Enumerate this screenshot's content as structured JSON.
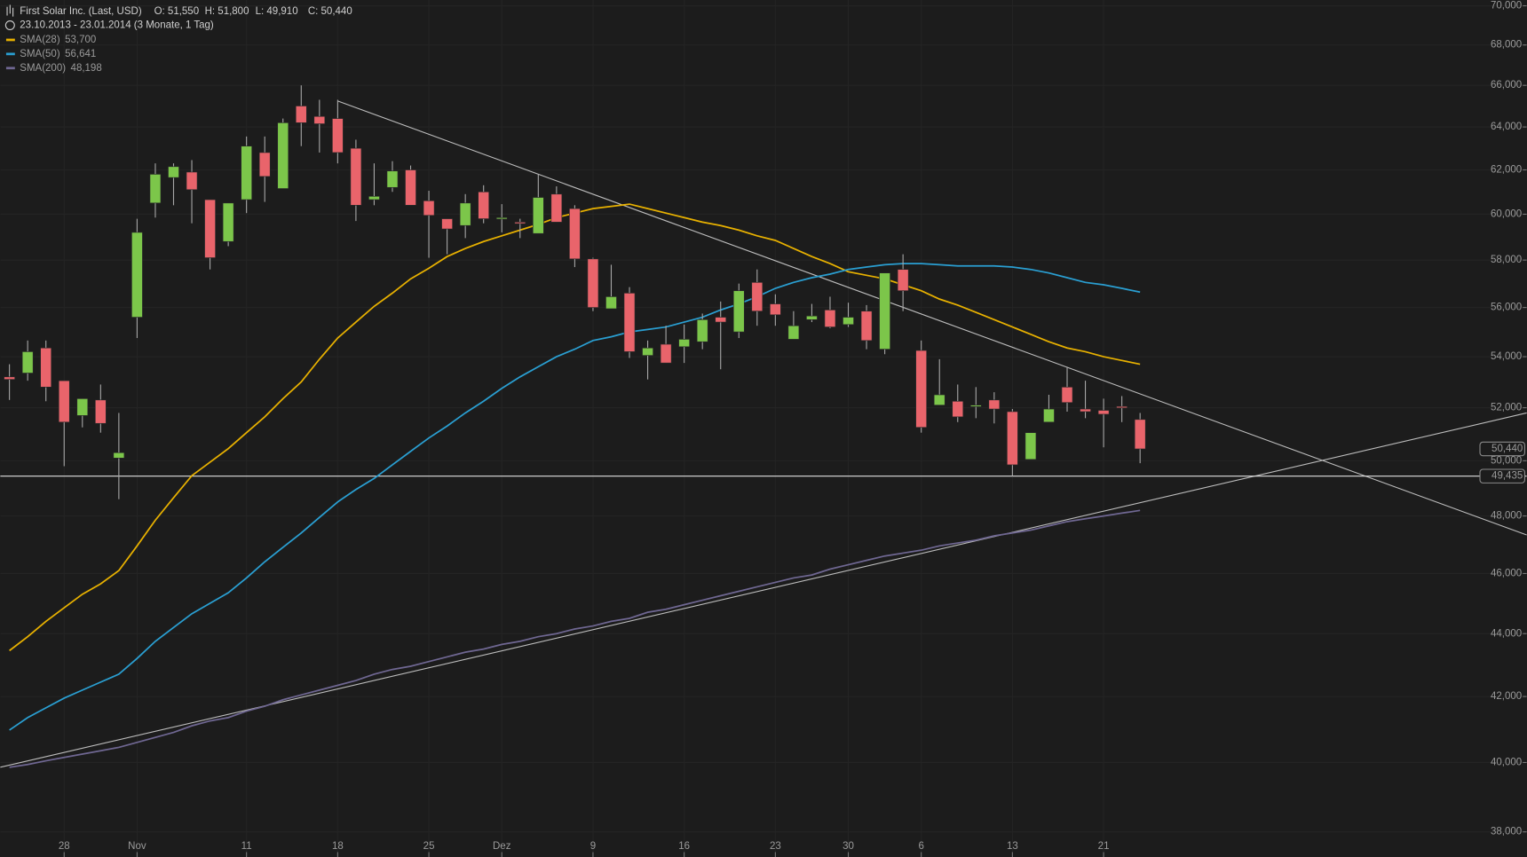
{
  "header": {
    "title": "First Solar Inc. (Last, USD)",
    "open": "O: 51,550",
    "high": "H: 51,800",
    "low": "L: 49,910",
    "close": "C: 50,440",
    "period": "23.10.2013 - 23.01.2014 (3 Monate, 1 Tag)"
  },
  "chart_data": {
    "type": "candlestick",
    "log_scale": true,
    "grid": true,
    "categories": [
      null,
      null,
      null,
      "28",
      null,
      null,
      null,
      "Nov",
      null,
      null,
      null,
      null,
      null,
      "11",
      null,
      null,
      null,
      null,
      "18",
      null,
      null,
      null,
      null,
      "25",
      null,
      null,
      null,
      "Dez",
      null,
      null,
      null,
      null,
      "9",
      null,
      null,
      null,
      null,
      "16",
      null,
      null,
      null,
      null,
      "23",
      null,
      null,
      null,
      "30",
      null,
      null,
      null,
      "6",
      null,
      null,
      null,
      null,
      "13",
      null,
      null,
      null,
      null,
      "21",
      null,
      null
    ],
    "ohlc": {
      "up_color": "#7cc64a",
      "down_color": "#e9646b",
      "wick_color": "#a8a8a8",
      "open": [
        53200,
        53350,
        54350,
        53050,
        51700,
        52300,
        50100,
        55600,
        60500,
        61650,
        61900,
        60650,
        58800,
        60650,
        62800,
        61150,
        65000,
        64500,
        64400,
        63000,
        60650,
        61200,
        62000,
        60600,
        59800,
        59500,
        61000,
        59800,
        59650,
        59150,
        60900,
        60250,
        58050,
        55950,
        56600,
        54050,
        54500,
        54400,
        54600,
        55600,
        55000,
        57050,
        56150,
        54700,
        55500,
        55900,
        55300,
        55850,
        54300,
        57600,
        54250,
        52100,
        52250,
        52050,
        52300,
        51850,
        50050,
        51450,
        52800,
        51950,
        51900,
        52050,
        51550
      ],
      "high": [
        53700,
        54650,
        54650,
        53050,
        52350,
        52900,
        51800,
        59800,
        62300,
        62300,
        62450,
        60650,
        60500,
        63550,
        63550,
        64400,
        66000,
        65300,
        65300,
        63400,
        62300,
        62400,
        62200,
        61050,
        59800,
        60900,
        61300,
        60450,
        59800,
        61800,
        61250,
        60400,
        58100,
        57800,
        56850,
        54650,
        55250,
        55300,
        55750,
        56250,
        57000,
        57600,
        56550,
        55850,
        56150,
        56450,
        56200,
        56100,
        57450,
        58250,
        54650,
        53900,
        52900,
        52800,
        52600,
        51950,
        51050,
        52500,
        53600,
        53050,
        52350,
        52450,
        51800
      ],
      "low": [
        52300,
        53050,
        52250,
        49800,
        51250,
        51050,
        48600,
        54750,
        59850,
        60400,
        59600,
        57600,
        58600,
        60050,
        60550,
        61150,
        63100,
        62800,
        62300,
        59700,
        60400,
        61000,
        60400,
        58100,
        58250,
        58950,
        59600,
        59200,
        58950,
        59150,
        59650,
        57700,
        55850,
        55950,
        53950,
        53100,
        53750,
        53750,
        54300,
        53500,
        54750,
        55250,
        55250,
        54700,
        55400,
        55150,
        55200,
        54300,
        54100,
        55850,
        51050,
        52100,
        51450,
        51600,
        51400,
        49435,
        50050,
        51450,
        51850,
        51600,
        50500,
        51450,
        49910
      ],
      "close": [
        53100,
        54200,
        52800,
        51450,
        52350,
        51400,
        50300,
        59200,
        61800,
        62150,
        61100,
        58100,
        60500,
        63100,
        61700,
        64200,
        64200,
        64150,
        62800,
        60400,
        60800,
        61950,
        60400,
        59950,
        59350,
        60500,
        59800,
        59850,
        59600,
        60750,
        59650,
        58050,
        56000,
        56450,
        54200,
        54350,
        53750,
        54700,
        55500,
        55400,
        56700,
        55850,
        55700,
        55250,
        55650,
        55200,
        55600,
        54650,
        57450,
        56700,
        51250,
        52500,
        51650,
        52100,
        51950,
        49850,
        51050,
        51950,
        52200,
        51850,
        51750,
        52000,
        50440
      ]
    },
    "series": [
      {
        "name": "SMA(28)",
        "color": "#e8b100",
        "last_label": "53,700",
        "values": [
          43450,
          43900,
          44400,
          44850,
          45300,
          45650,
          46100,
          46950,
          47850,
          48650,
          49450,
          49950,
          50450,
          51050,
          51650,
          52350,
          53000,
          53900,
          54750,
          55400,
          56050,
          56600,
          57200,
          57650,
          58150,
          58500,
          58800,
          59050,
          59300,
          59550,
          59850,
          60050,
          60250,
          60350,
          60450,
          60250,
          60050,
          59850,
          59650,
          59500,
          59300,
          59050,
          58850,
          58500,
          58150,
          57850,
          57500,
          57350,
          57200,
          56950,
          56700,
          56350,
          56100,
          55800,
          55500,
          55200,
          54900,
          54600,
          54350,
          54200,
          54000,
          53850,
          53700
        ]
      },
      {
        "name": "SMA(50)",
        "color": "#2a9fd2",
        "last_label": "56,641",
        "values": [
          40970,
          41350,
          41650,
          41950,
          42200,
          42450,
          42700,
          43200,
          43750,
          44200,
          44650,
          45000,
          45350,
          45850,
          46400,
          46900,
          47400,
          47950,
          48500,
          48950,
          49350,
          49850,
          50350,
          50850,
          51300,
          51800,
          52250,
          52750,
          53200,
          53600,
          54000,
          54300,
          54650,
          54800,
          55000,
          55100,
          55200,
          55400,
          55600,
          55900,
          56150,
          56450,
          56800,
          57050,
          57250,
          57400,
          57600,
          57700,
          57800,
          57850,
          57850,
          57800,
          57750,
          57750,
          57750,
          57700,
          57600,
          57450,
          57250,
          57050,
          56950,
          56800,
          56641
        ]
      },
      {
        "name": "SMA(200)",
        "color": "#6f6792",
        "last_label": "48,198",
        "values": [
          39860,
          39940,
          40050,
          40150,
          40250,
          40350,
          40450,
          40600,
          40750,
          40900,
          41100,
          41250,
          41350,
          41550,
          41700,
          41900,
          42050,
          42200,
          42350,
          42500,
          42700,
          42850,
          42950,
          43100,
          43250,
          43400,
          43500,
          43650,
          43750,
          43900,
          44000,
          44150,
          44250,
          44400,
          44500,
          44700,
          44800,
          44950,
          45100,
          45250,
          45400,
          45550,
          45700,
          45850,
          45950,
          46150,
          46300,
          46450,
          46600,
          46700,
          46800,
          46950,
          47050,
          47150,
          47300,
          47400,
          47500,
          47650,
          47800,
          47900,
          48000,
          48100,
          48198
        ]
      }
    ],
    "trendlines": [
      {
        "color": "#bdbdbd",
        "x": [
          18,
          83.2
        ],
        "y": [
          65240,
          47330
        ]
      },
      {
        "color": "#bdbdbd",
        "x": [
          -0.5,
          83.2
        ],
        "y": [
          39860,
          51800
        ]
      }
    ],
    "hline": {
      "value": 49435,
      "label": "49,435",
      "color": "#e0e0e0"
    },
    "last_price": {
      "value": 50440,
      "label": "50,440"
    },
    "xlim": [
      -0.5,
      83.2
    ],
    "ylim": [
      37300,
      70300
    ],
    "yticks": [
      {
        "value": 38000,
        "label": "38,000"
      },
      {
        "value": 40000,
        "label": "40,000"
      },
      {
        "value": 42000,
        "label": "42,000"
      },
      {
        "value": 44000,
        "label": "44,000"
      },
      {
        "value": 46000,
        "label": "46,000"
      },
      {
        "value": 48000,
        "label": "48,000"
      },
      {
        "value": 50000,
        "label": "50,000"
      },
      {
        "value": 52000,
        "label": "52,000"
      },
      {
        "value": 54000,
        "label": "54,000"
      },
      {
        "value": 56000,
        "label": "56,000"
      },
      {
        "value": 58000,
        "label": "58,000"
      },
      {
        "value": 60000,
        "label": "60,000"
      },
      {
        "value": 62000,
        "label": "62,000"
      },
      {
        "value": 64000,
        "label": "64,000"
      },
      {
        "value": 66000,
        "label": "66,000"
      },
      {
        "value": 68000,
        "label": "68,000"
      },
      {
        "value": 70000,
        "label": "70,000"
      }
    ]
  }
}
